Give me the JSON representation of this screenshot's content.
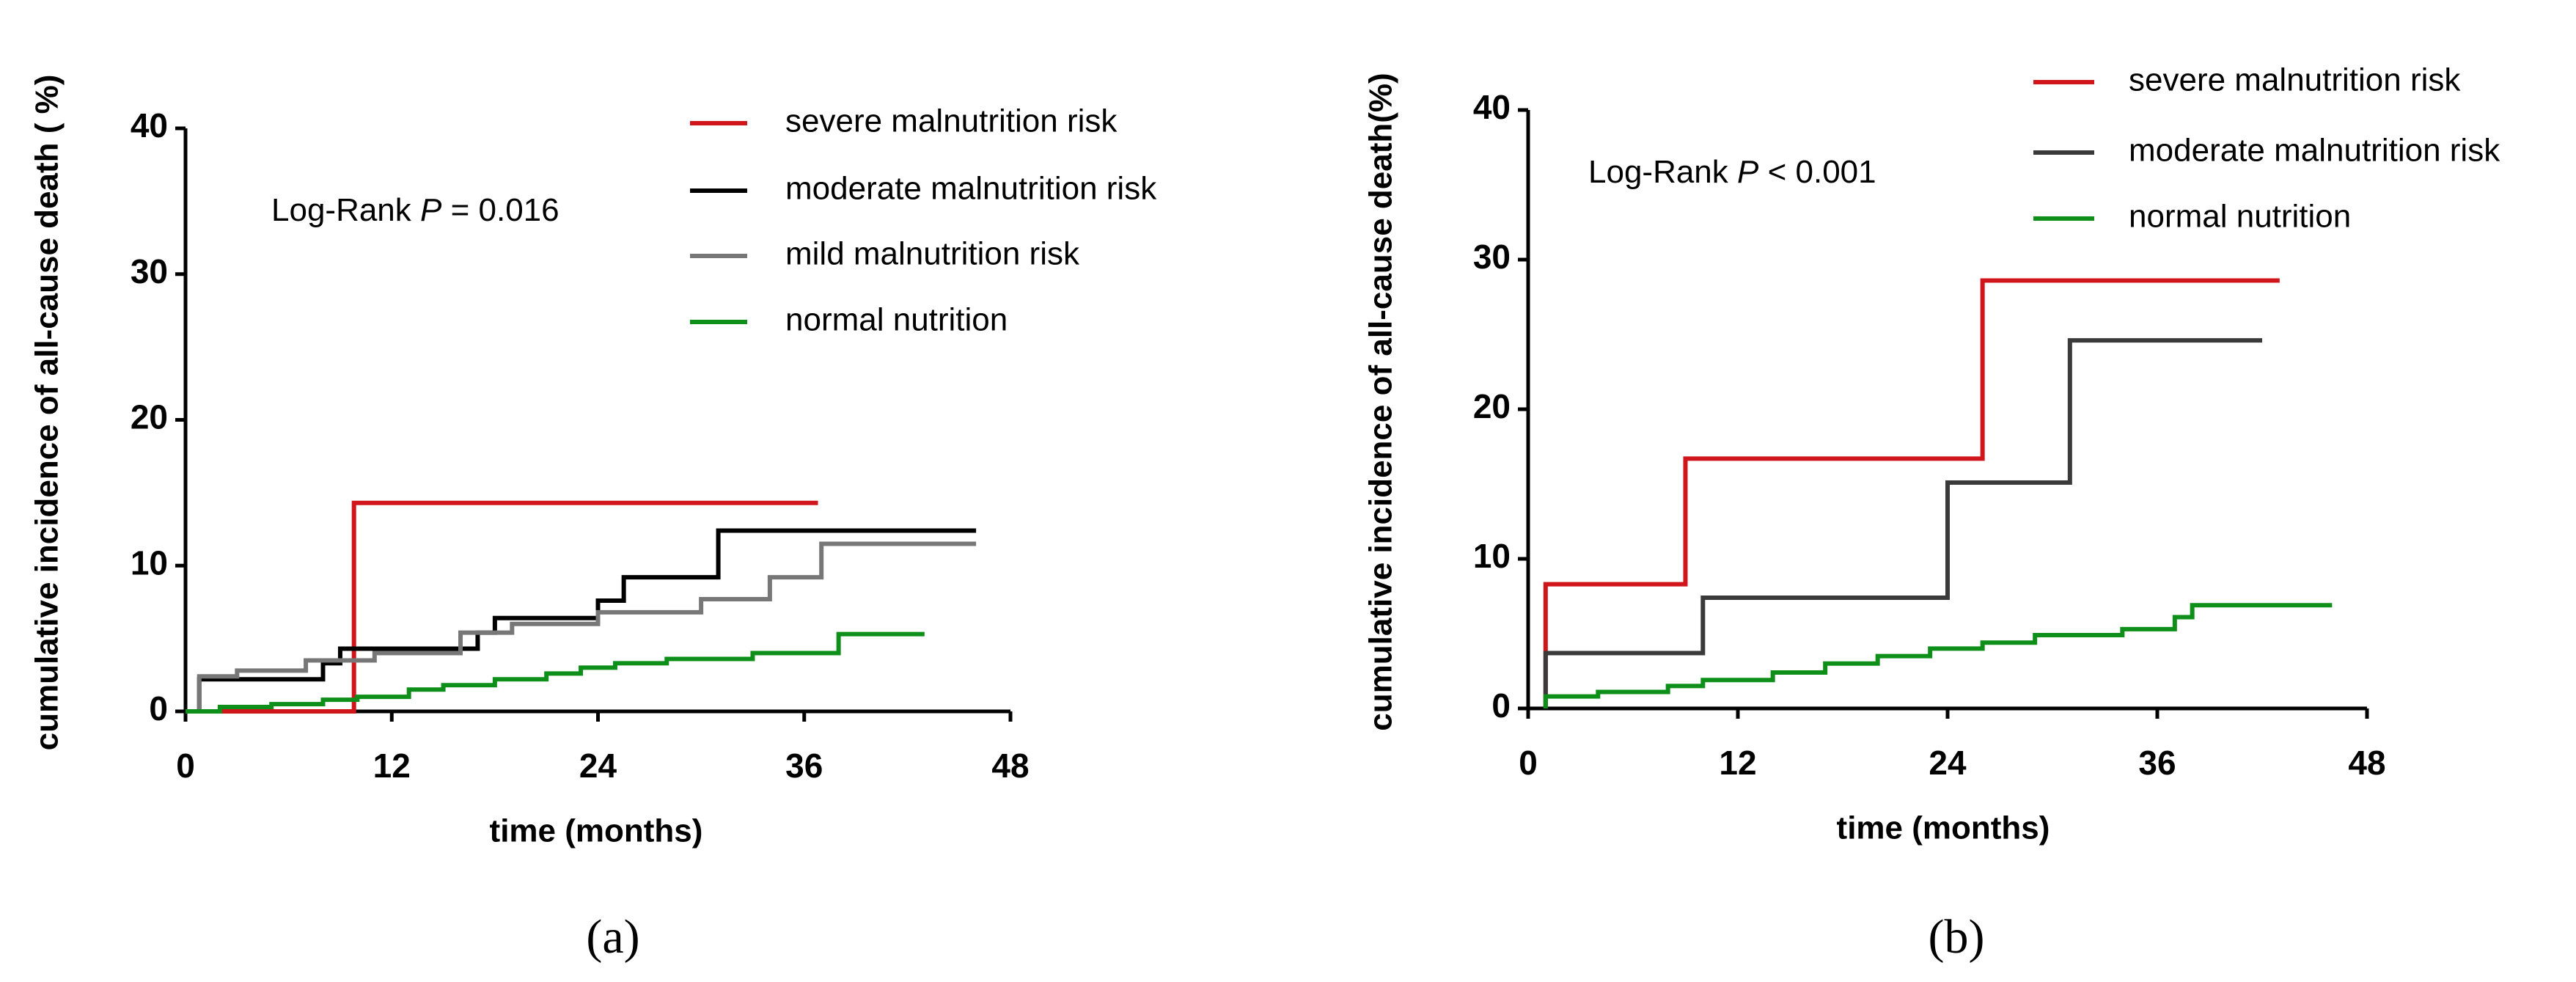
{
  "chart_data": [
    {
      "type": "line",
      "step": true,
      "panel_label": "(a)",
      "annotation": [
        "Log-Rank ",
        "P",
        " = 0.016"
      ],
      "xlabel": "time (months)",
      "ylabel": "cumulative incidence of all-cause death ( %)",
      "xlim": [
        0,
        48
      ],
      "xticks": [
        0,
        12,
        24,
        36,
        48
      ],
      "ylim": [
        0,
        40
      ],
      "yticks": [
        0,
        10,
        20,
        30,
        40
      ],
      "series": [
        {
          "name": "severe malnutrition risk",
          "color": "#d0161b",
          "x": [
            0,
            9.8,
            9.8,
            36.8
          ],
          "values": [
            0,
            0,
            14.3,
            14.3
          ]
        },
        {
          "name": "moderate malnutrition risk",
          "color": "#000000",
          "x": [
            0,
            0.8,
            0.8,
            8,
            8,
            9,
            9,
            17,
            17,
            18,
            18,
            24,
            24,
            25.5,
            25.5,
            31,
            31,
            46
          ],
          "values": [
            0,
            0,
            2.2,
            2.2,
            3.3,
            3.3,
            4.3,
            4.3,
            5.4,
            5.4,
            6.4,
            6.4,
            7.6,
            7.6,
            9.2,
            9.2,
            12.4,
            12.4
          ]
        },
        {
          "name": "mild malnutrition risk",
          "color": "#777777",
          "x": [
            0.8,
            0.8,
            3,
            3,
            7,
            7,
            11,
            11,
            16,
            16,
            19,
            19,
            24,
            24,
            30,
            30,
            34,
            34,
            37,
            37,
            46
          ],
          "values": [
            0,
            2.4,
            2.4,
            2.8,
            2.8,
            3.5,
            3.5,
            4,
            4,
            5.4,
            5.4,
            6,
            6,
            6.8,
            6.8,
            7.7,
            7.7,
            9.2,
            9.2,
            11.5,
            11.5
          ]
        },
        {
          "name": "normal nutrition",
          "color": "#0e8f1a",
          "x": [
            0,
            2,
            2,
            5,
            5,
            8,
            8,
            10,
            10,
            13,
            13,
            15,
            15,
            18,
            18,
            21,
            21,
            23,
            23,
            25,
            25,
            28,
            28,
            33,
            33,
            38,
            38,
            43
          ],
          "values": [
            0,
            0,
            0.3,
            0.3,
            0.5,
            0.5,
            0.8,
            0.8,
            1.0,
            1.0,
            1.5,
            1.5,
            1.8,
            1.8,
            2.2,
            2.2,
            2.6,
            2.6,
            3.0,
            3.0,
            3.3,
            3.3,
            3.6,
            3.6,
            4.0,
            4.0,
            5.3,
            5.3
          ]
        }
      ]
    },
    {
      "type": "line",
      "step": true,
      "panel_label": "(b)",
      "annotation": [
        "Log-Rank ",
        "P",
        " < 0.001"
      ],
      "xlabel": "time (months)",
      "ylabel": "cumulative incidence of all-cause death(%)",
      "xlim": [
        0,
        48
      ],
      "xticks": [
        0,
        12,
        24,
        36,
        48
      ],
      "ylim": [
        0,
        40
      ],
      "yticks": [
        0,
        10,
        20,
        30,
        40
      ],
      "series": [
        {
          "name": "severe malnutrition risk",
          "color": "#d0161b",
          "x": [
            1,
            1,
            9,
            9,
            26,
            26,
            43
          ],
          "values": [
            0,
            8.3,
            8.3,
            16.7,
            16.7,
            28.6,
            28.6
          ]
        },
        {
          "name": "moderate malnutrition risk",
          "color": "#3a3a3a",
          "x": [
            1,
            1,
            10,
            10,
            24,
            24,
            31,
            31,
            42
          ],
          "values": [
            0,
            3.7,
            3.7,
            7.4,
            7.4,
            15.1,
            15.1,
            24.6,
            24.6
          ]
        },
        {
          "name": "normal nutrition",
          "color": "#0e8f1a",
          "x": [
            1,
            1,
            4,
            4,
            8,
            8,
            10,
            10,
            14,
            14,
            17,
            17,
            20,
            20,
            23,
            23,
            26,
            26,
            29,
            29,
            34,
            34,
            37,
            37,
            38,
            38,
            46
          ],
          "values": [
            0,
            0.8,
            0.8,
            1.1,
            1.1,
            1.5,
            1.5,
            1.9,
            1.9,
            2.4,
            2.4,
            3.0,
            3.0,
            3.5,
            3.5,
            4.0,
            4.0,
            4.4,
            4.4,
            4.9,
            4.9,
            5.3,
            5.3,
            6.1,
            6.1,
            6.9,
            6.9
          ]
        }
      ]
    }
  ]
}
